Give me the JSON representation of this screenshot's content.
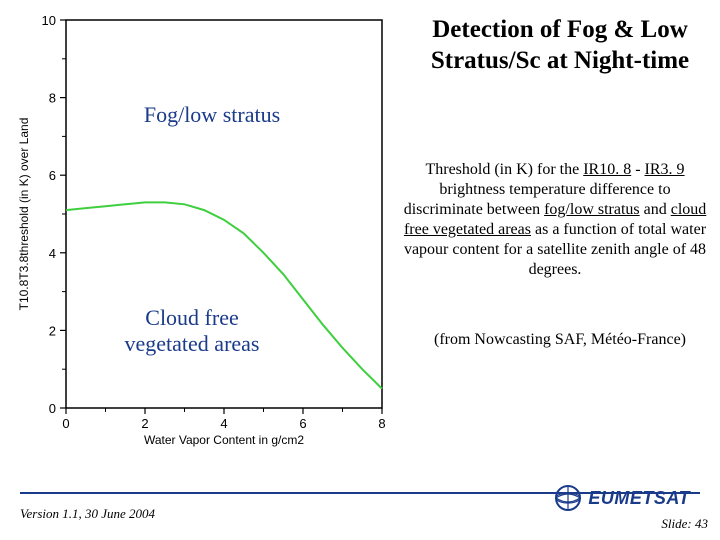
{
  "title": "Detection of Fog & Low Stratus/Sc at Night-time",
  "description": {
    "prefix": "Threshold (in K) for the ",
    "u1": "IR10. 8",
    "mid1": " - ",
    "u2": "IR3. 9",
    "mid2": " brightness temperature difference to discriminate between ",
    "u3": "fog/low stratus",
    "mid3": " and ",
    "u4": "cloud free vegetated areas",
    "suffix": " as a function of total water vapour content for a satellite zenith angle of 48 degrees."
  },
  "credit": "(from Nowcasting SAF, Météo-France)",
  "chart": {
    "label_upper": "Fog/low stratus",
    "label_lower": "Cloud free\nvegetated areas",
    "y_axis_label": "T10.8T3.8threshold (in K) over Land",
    "x_axis_label": "Water Vapor Content in g/cm2",
    "x_ticks": [
      0,
      2,
      4,
      6,
      8
    ],
    "y_ticks": [
      0,
      2,
      4,
      6,
      8,
      10
    ],
    "xlim": [
      0,
      8
    ],
    "ylim": [
      0,
      10
    ],
    "line_color": "#3ecf3e",
    "line_width": 2,
    "axis_color": "#000000",
    "background": "#ffffff",
    "curve": [
      [
        0.0,
        5.1
      ],
      [
        0.5,
        5.15
      ],
      [
        1.0,
        5.2
      ],
      [
        1.5,
        5.25
      ],
      [
        2.0,
        5.3
      ],
      [
        2.5,
        5.3
      ],
      [
        3.0,
        5.25
      ],
      [
        3.5,
        5.1
      ],
      [
        4.0,
        4.85
      ],
      [
        4.5,
        4.5
      ],
      [
        5.0,
        4.0
      ],
      [
        5.5,
        3.45
      ],
      [
        6.0,
        2.8
      ],
      [
        6.5,
        2.15
      ],
      [
        7.0,
        1.55
      ],
      [
        7.5,
        1.0
      ],
      [
        8.0,
        0.5
      ]
    ]
  },
  "footer": {
    "version": "Version 1.1, 30 June 2004",
    "slide": "Slide: 43",
    "logo_text": "EUMETSAT",
    "line_color": "#1a3a8a"
  }
}
